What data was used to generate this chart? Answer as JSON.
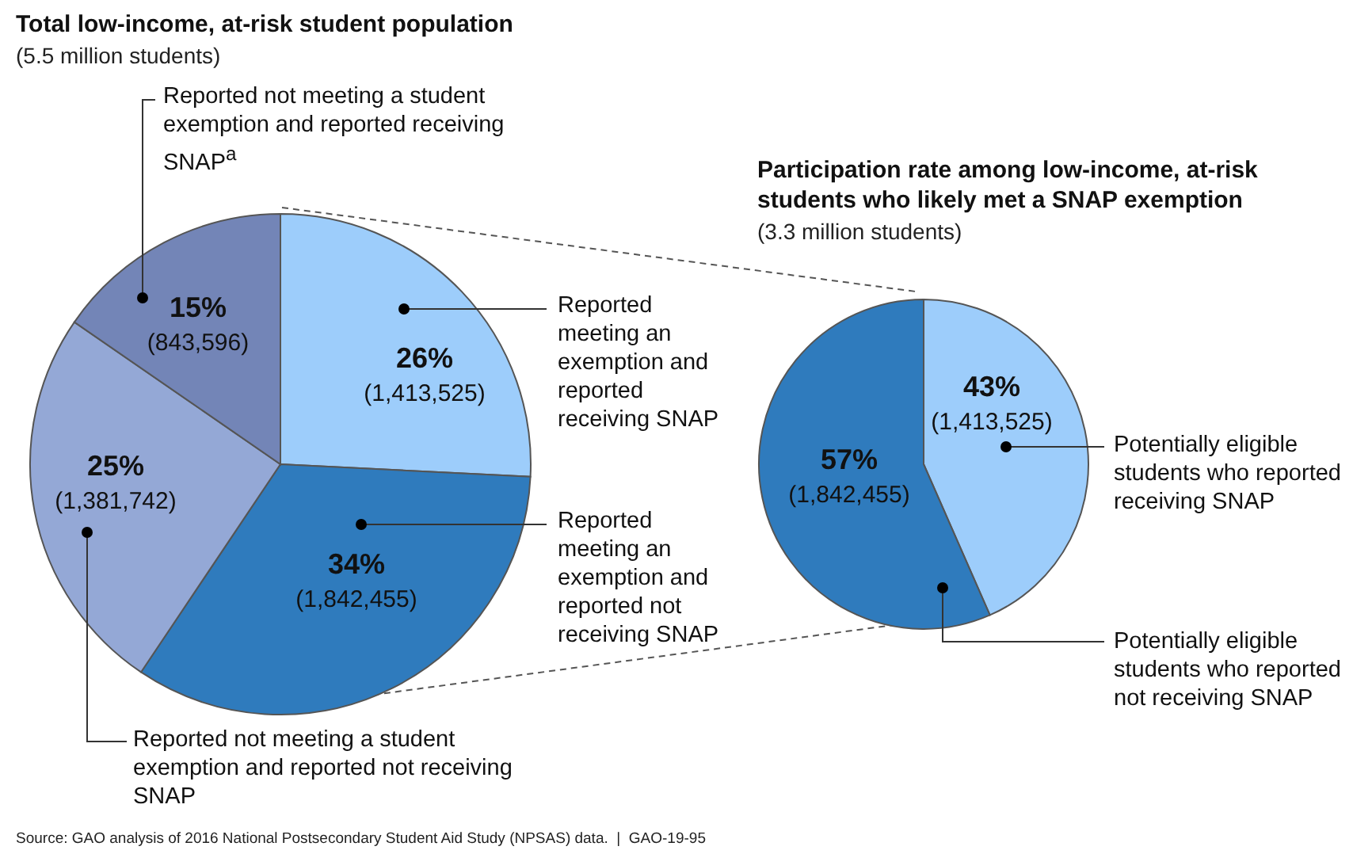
{
  "chart_data": [
    {
      "type": "pie",
      "title": "Total low-income, at-risk student population",
      "subtitle": "(5.5 million students)",
      "categories": [
        "Reported meeting an exemption and reported receiving SNAP",
        "Reported meeting an exemption and reported not receiving SNAP",
        "Reported not meeting a student exemption and reported not receiving SNAP",
        "Reported not meeting a student exemption and reported receiving SNAP$^{a}$"
      ],
      "values": [
        1413525,
        1842455,
        1381742,
        843596
      ],
      "colors": [
        "#9dcdfb",
        "#2f7bbd",
        "#94a8d6",
        "#7385b7"
      ],
      "value_labels": [
        "26%\n(1,413,525)",
        "34%\n(1,842,455)",
        "25%\n(1,381,742)",
        "15%\n(843,596)"
      ],
      "annotations": [
        "Source: GAO analysis of 2016 National Postsecondary Student Aid Study (NPSAS) data.  |  GAO-19-95"
      ]
    },
    {
      "type": "pie",
      "title": "Participation rate among low-income, at-risk students who likely met a SNAP exemption",
      "subtitle": "(3.3 million students)",
      "categories": [
        "Potentially eligible students who reported receiving SNAP",
        "Potentially eligible students who reported not receiving SNAP"
      ],
      "values": [
        1413525,
        1842455
      ],
      "colors": [
        "#9dcdfb",
        "#2f7bbd"
      ],
      "value_labels": [
        "43%\n(1,413,525)",
        "57%\n(1,842,455)"
      ]
    }
  ]
}
